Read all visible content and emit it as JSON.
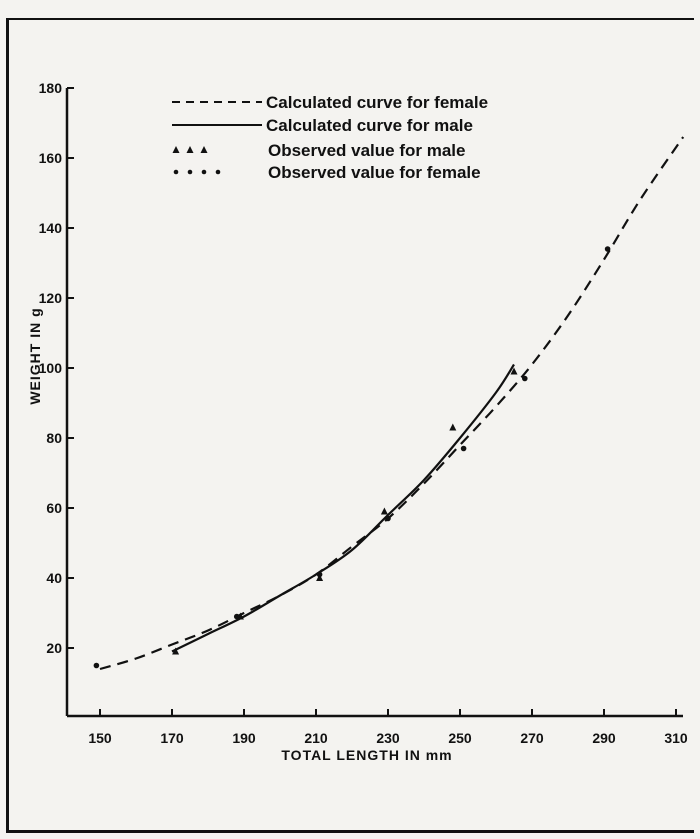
{
  "chart_data": {
    "type": "line",
    "title": "",
    "xlabel": "TOTAL LENGTH IN mm",
    "ylabel": "WEIGHT IN g",
    "xlim": [
      140,
      315
    ],
    "ylim": [
      0,
      180
    ],
    "x_ticks": [
      150,
      170,
      190,
      210,
      230,
      250,
      270,
      290,
      310
    ],
    "y_ticks": [
      20,
      40,
      60,
      80,
      100,
      120,
      140,
      160,
      180
    ],
    "x_tick_labels": [
      "150",
      "170",
      "190",
      "210",
      "230",
      "250",
      "270",
      "290",
      "310"
    ],
    "y_tick_labels": [
      "20",
      "40",
      "60",
      "80",
      "100",
      "120",
      "140",
      "160",
      "180"
    ],
    "grid": false,
    "legend_position": "top-left",
    "series": [
      {
        "name": "Calculated curve for female",
        "kind": "line",
        "style": "dashed",
        "x": [
          150,
          160,
          170,
          180,
          190,
          200,
          210,
          220,
          230,
          240,
          250,
          260,
          270,
          280,
          290,
          300,
          312
        ],
        "y": [
          14,
          17,
          21,
          25,
          30,
          35,
          41,
          49,
          57,
          67,
          78,
          89,
          101,
          115,
          131,
          148,
          166
        ]
      },
      {
        "name": "Calculated curve for male",
        "kind": "line",
        "style": "solid",
        "x": [
          170,
          180,
          190,
          200,
          210,
          220,
          230,
          240,
          250,
          260,
          265
        ],
        "y": [
          19,
          24,
          29,
          35,
          41,
          48,
          58,
          68,
          80,
          93,
          101
        ]
      },
      {
        "name": "Observed value for male",
        "kind": "scatter",
        "marker": "triangle",
        "x": [
          171,
          189,
          211,
          229,
          248,
          265
        ],
        "y": [
          19,
          29,
          40,
          59,
          83,
          99
        ]
      },
      {
        "name": "Observed value for female",
        "kind": "scatter",
        "marker": "dot",
        "x": [
          149,
          188,
          211,
          230,
          251,
          268,
          291
        ],
        "y": [
          15,
          29,
          41,
          57,
          77,
          97,
          134
        ]
      }
    ]
  }
}
